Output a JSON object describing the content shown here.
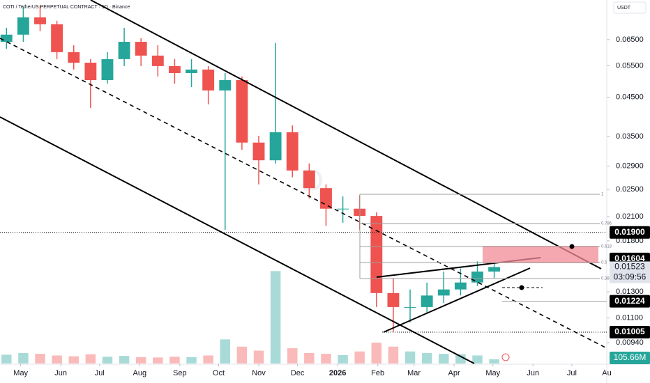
{
  "header": "COTI / TetherUS PERPETUAL CONTRACT · 1D · Binance",
  "currency": "USDT",
  "chart_data": {
    "type": "candlestick",
    "log_scale": true,
    "ylim": [
      0.00823,
      0.0837
    ],
    "yticks": [
      {
        "value": 0.065,
        "label": "0.06500"
      },
      {
        "value": 0.055,
        "label": "0.05500"
      },
      {
        "value": 0.045,
        "label": "0.04500"
      },
      {
        "value": 0.035,
        "label": "0.03500"
      },
      {
        "value": 0.029,
        "label": "0.02900"
      },
      {
        "value": 0.025,
        "label": "0.02500"
      },
      {
        "value": 0.021,
        "label": "0.02100"
      },
      {
        "value": 0.018,
        "label": "0.01800"
      },
      {
        "value": 0.013,
        "label": "0.01300"
      },
      {
        "value": 0.011,
        "label": "0.01100"
      },
      {
        "value": 0.0094,
        "label": "0.00940"
      }
    ],
    "xlim": [
      0,
      469
    ],
    "xticks": [
      {
        "value": 16,
        "label": "May"
      },
      {
        "value": 47,
        "label": "Jun"
      },
      {
        "value": 77,
        "label": "Jul"
      },
      {
        "value": 108,
        "label": "Aug"
      },
      {
        "value": 139,
        "label": "Sep"
      },
      {
        "value": 169,
        "label": "Oct"
      },
      {
        "value": 200,
        "label": "Nov"
      },
      {
        "value": 230,
        "label": "Dec"
      },
      {
        "value": 261,
        "label": "2026"
      },
      {
        "value": 292,
        "label": "Feb"
      },
      {
        "value": 320,
        "label": "Mar"
      },
      {
        "value": 351,
        "label": "Apr"
      },
      {
        "value": 381,
        "label": "May"
      },
      {
        "value": 412,
        "label": "Jun"
      },
      {
        "value": 442,
        "label": "Jul"
      },
      {
        "value": 469,
        "label": "Au"
      }
    ],
    "x": [
      5,
      18,
      31,
      44,
      57,
      70,
      83,
      96,
      109,
      122,
      135,
      148,
      161,
      174,
      187,
      200,
      213,
      226,
      239,
      252,
      265,
      278,
      291,
      304,
      317,
      330,
      343,
      356,
      369,
      382
    ],
    "open": [
      0.0641,
      0.0671,
      0.0749,
      0.0717,
      0.06,
      0.0561,
      0.0502,
      0.0574,
      0.0641,
      0.0587,
      0.0549,
      0.0525,
      0.0537,
      0.047,
      0.0502,
      0.0337,
      0.0301,
      0.036,
      0.0282,
      0.0252,
      0.0221,
      0.0221,
      0.0211,
      0.0129,
      0.0118,
      0.0118,
      0.0127,
      0.0132,
      0.0138,
      0.0148
    ],
    "high": [
      0.0701,
      0.0801,
      0.0808,
      0.0733,
      0.0627,
      0.0574,
      0.06,
      0.0701,
      0.0656,
      0.0627,
      0.0574,
      0.0574,
      0.0549,
      0.0525,
      0.0514,
      0.0352,
      0.0636,
      0.0376,
      0.0295,
      0.0258,
      0.0239,
      0.0241,
      0.0216,
      0.0142,
      0.0132,
      0.0138,
      0.0148,
      0.0151,
      0.0158,
      0.0156
    ],
    "low": [
      0.0613,
      0.0641,
      0.0686,
      0.0574,
      0.0537,
      0.042,
      0.0491,
      0.0549,
      0.0549,
      0.0514,
      0.0491,
      0.048,
      0.043,
      0.0193,
      0.0322,
      0.0258,
      0.0295,
      0.027,
      0.0236,
      0.0198,
      0.0202,
      0.0193,
      0.0118,
      0.01005,
      0.0107,
      0.0113,
      0.0121,
      0.0127,
      0.0135,
      0.0142
    ],
    "close": [
      0.0671,
      0.0749,
      0.0717,
      0.06,
      0.0561,
      0.0502,
      0.0574,
      0.0641,
      0.0587,
      0.0549,
      0.0525,
      0.0537,
      0.047,
      0.0502,
      0.0337,
      0.0301,
      0.036,
      0.0282,
      0.0252,
      0.0221,
      0.0221,
      0.0211,
      0.0129,
      0.0118,
      0.0118,
      0.0127,
      0.0132,
      0.0138,
      0.0148,
      0.01523
    ],
    "volume": [
      220,
      260,
      240,
      200,
      180,
      230,
      170,
      190,
      160,
      150,
      170,
      160,
      200,
      600,
      420,
      320,
      2300,
      380,
      260,
      240,
      210,
      300,
      520,
      420,
      300,
      260,
      240,
      230,
      200,
      105.66
    ],
    "vlim": [
      0,
      2600
    ],
    "up_color": "#26a69a",
    "down_color": "#ef5350",
    "price_levels": [
      {
        "value": 0.019,
        "label": "0.01900"
      },
      {
        "value": 0.01604,
        "label": "0.01604"
      },
      {
        "value": 0.01224,
        "label": "0.01224"
      },
      {
        "value": 0.01005,
        "label": "0.01005"
      }
    ],
    "last_price": {
      "value": 0.01523,
      "label": "0.01523"
    },
    "countdown": "03:09:56",
    "volume_badge": "105.66M",
    "fib_labels": [
      "1",
      "0.786",
      "0.618",
      "0.5",
      "0.382"
    ]
  }
}
